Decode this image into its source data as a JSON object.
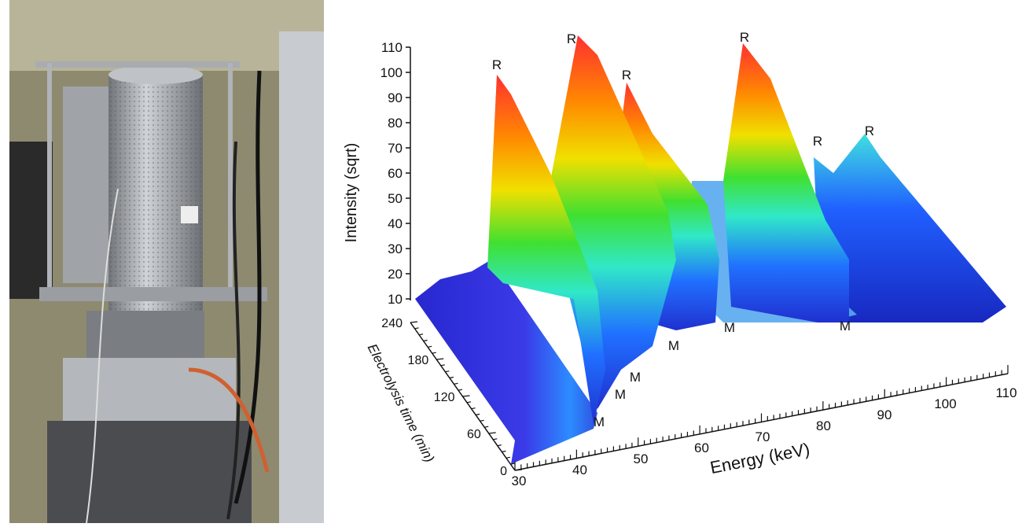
{
  "plot": {
    "y_axis": {
      "label": "Intensity (sqrt)",
      "ticks": [
        10,
        20,
        30,
        40,
        50,
        60,
        70,
        80,
        90,
        100,
        110
      ]
    },
    "time_axis": {
      "label": "Electrolysis time (min)",
      "ticks": [
        0,
        60,
        120,
        180,
        240
      ]
    },
    "x_axis": {
      "label": "Energy (keV)",
      "ticks": [
        30,
        40,
        50,
        60,
        70,
        80,
        90,
        100,
        110
      ]
    },
    "peak_labels": [
      "R",
      "R",
      "R",
      "R",
      "R",
      "R"
    ],
    "edge_labels": [
      "M",
      "M",
      "M",
      "M",
      "M",
      "M"
    ]
  }
}
